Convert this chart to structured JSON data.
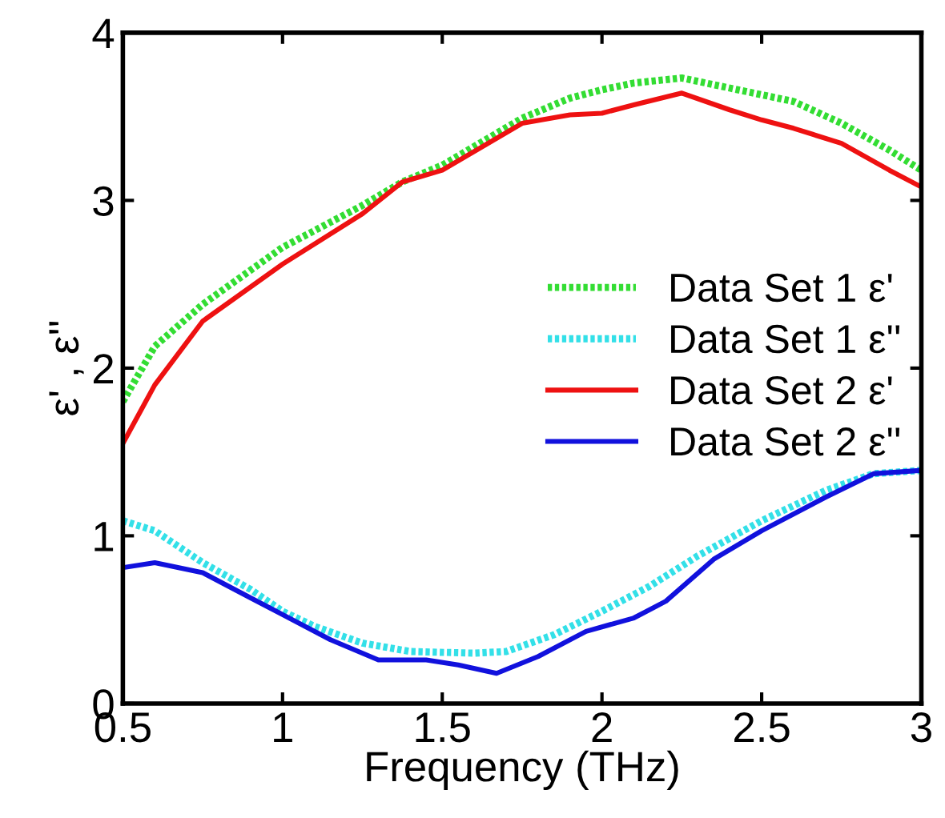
{
  "chart_data": {
    "type": "line",
    "xlabel": "Frequency (THz)",
    "ylabel": "ε' , ε''",
    "xlim": [
      0.5,
      3
    ],
    "xticks": [
      0.5,
      1,
      1.5,
      2,
      2.5,
      3
    ],
    "ylim": [
      0,
      4
    ],
    "yticks": [
      0,
      1,
      2,
      3,
      4
    ],
    "grid": false,
    "legend": "center right",
    "marker": "none",
    "series": [
      {
        "name": "Data Set 1 ε'",
        "color": "#33dd33",
        "line_style": "dotted",
        "x": [
          0.5,
          0.6,
          0.75,
          1.0,
          1.25,
          1.375,
          1.5,
          1.75,
          1.9,
          2.0,
          2.1,
          2.25,
          2.4,
          2.5,
          2.6,
          2.75,
          2.9,
          3.0
        ],
        "values": [
          1.8,
          2.13,
          2.38,
          2.72,
          2.97,
          3.11,
          3.21,
          3.49,
          3.61,
          3.66,
          3.7,
          3.73,
          3.67,
          3.63,
          3.59,
          3.46,
          3.3,
          3.18
        ]
      },
      {
        "name": "Data Set 1 ε''",
        "color": "#33e0e8",
        "line_style": "dotted",
        "x": [
          0.5,
          0.6,
          0.75,
          0.9,
          1.0,
          1.1,
          1.25,
          1.4,
          1.6,
          1.7,
          1.85,
          2.0,
          2.15,
          2.3,
          2.5,
          2.7,
          2.85,
          3.0
        ],
        "values": [
          1.09,
          1.03,
          0.84,
          0.68,
          0.55,
          0.46,
          0.36,
          0.31,
          0.3,
          0.31,
          0.41,
          0.55,
          0.7,
          0.88,
          1.09,
          1.27,
          1.37,
          1.39
        ]
      },
      {
        "name": "Data Set 2 ε'",
        "color": "#ee1111",
        "line_style": "solid",
        "x": [
          0.5,
          0.6,
          0.75,
          1.0,
          1.25,
          1.375,
          1.5,
          1.75,
          1.9,
          2.0,
          2.1,
          2.25,
          2.4,
          2.5,
          2.6,
          2.75,
          2.9,
          3.0
        ],
        "values": [
          1.55,
          1.9,
          2.28,
          2.62,
          2.92,
          3.11,
          3.18,
          3.46,
          3.51,
          3.52,
          3.57,
          3.64,
          3.54,
          3.48,
          3.43,
          3.34,
          3.18,
          3.08
        ]
      },
      {
        "name": "Data Set 2 ε''",
        "color": "#1111dd",
        "line_style": "solid",
        "x": [
          0.5,
          0.6,
          0.75,
          0.9,
          1.0,
          1.15,
          1.3,
          1.45,
          1.55,
          1.67,
          1.8,
          1.95,
          2.1,
          2.2,
          2.35,
          2.5,
          2.7,
          2.85,
          3.0
        ],
        "values": [
          0.81,
          0.84,
          0.78,
          0.63,
          0.53,
          0.38,
          0.26,
          0.26,
          0.23,
          0.18,
          0.28,
          0.43,
          0.51,
          0.61,
          0.86,
          1.03,
          1.23,
          1.37,
          1.39
        ]
      }
    ]
  }
}
